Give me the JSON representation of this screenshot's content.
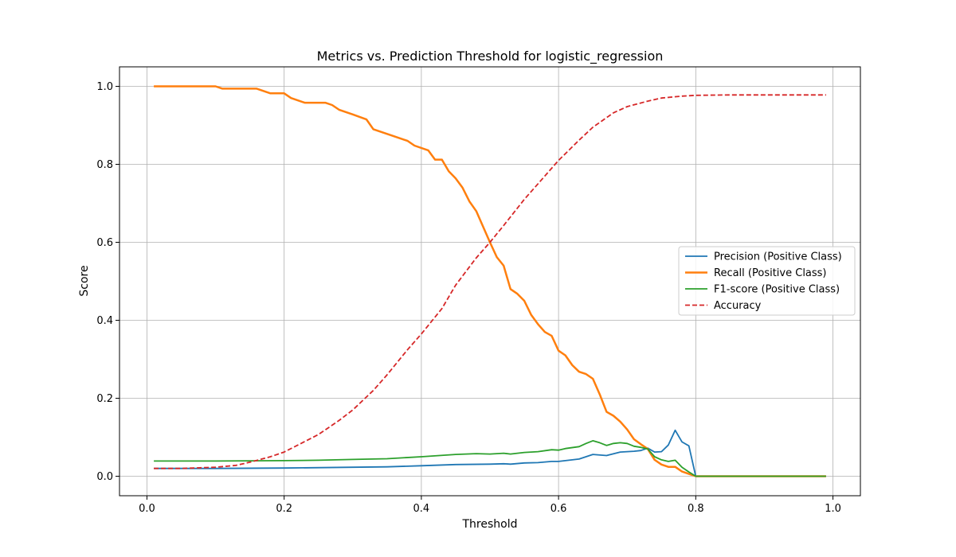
{
  "chart_data": {
    "type": "line",
    "title": "Metrics vs. Prediction Threshold for logistic_regression",
    "xlabel": "Threshold",
    "ylabel": "Score",
    "xlim": [
      -0.04,
      1.04
    ],
    "ylim": [
      -0.05,
      1.05
    ],
    "xticks": [
      0.0,
      0.2,
      0.4,
      0.6,
      0.8,
      1.0
    ],
    "xtick_labels": [
      "0.0",
      "0.2",
      "0.4",
      "0.6",
      "0.8",
      "1.0"
    ],
    "yticks": [
      0.0,
      0.2,
      0.4,
      0.6,
      0.8,
      1.0
    ],
    "ytick_labels": [
      "0.0",
      "0.2",
      "0.4",
      "0.6",
      "0.8",
      "1.0"
    ],
    "grid": true,
    "legend_position": "center-right",
    "series": [
      {
        "name": "Precision (Positive Class)",
        "color": "#1f77b4",
        "style": "solid",
        "points": [
          [
            0.01,
            0.02
          ],
          [
            0.1,
            0.02
          ],
          [
            0.2,
            0.021
          ],
          [
            0.3,
            0.023
          ],
          [
            0.35,
            0.024
          ],
          [
            0.4,
            0.027
          ],
          [
            0.45,
            0.03
          ],
          [
            0.5,
            0.031
          ],
          [
            0.52,
            0.032
          ],
          [
            0.53,
            0.031
          ],
          [
            0.55,
            0.034
          ],
          [
            0.57,
            0.035
          ],
          [
            0.59,
            0.038
          ],
          [
            0.6,
            0.038
          ],
          [
            0.61,
            0.04
          ],
          [
            0.63,
            0.044
          ],
          [
            0.65,
            0.056
          ],
          [
            0.67,
            0.053
          ],
          [
            0.69,
            0.062
          ],
          [
            0.71,
            0.064
          ],
          [
            0.72,
            0.066
          ],
          [
            0.73,
            0.072
          ],
          [
            0.74,
            0.062
          ],
          [
            0.75,
            0.063
          ],
          [
            0.76,
            0.08
          ],
          [
            0.77,
            0.118
          ],
          [
            0.78,
            0.088
          ],
          [
            0.79,
            0.078
          ],
          [
            0.8,
            0.0
          ],
          [
            0.99,
            0.0
          ]
        ]
      },
      {
        "name": "Recall (Positive Class)",
        "color": "#ff7f0e",
        "style": "solid",
        "points": [
          [
            0.01,
            1.0
          ],
          [
            0.1,
            1.0
          ],
          [
            0.11,
            0.994
          ],
          [
            0.16,
            0.994
          ],
          [
            0.18,
            0.982
          ],
          [
            0.2,
            0.982
          ],
          [
            0.21,
            0.97
          ],
          [
            0.23,
            0.958
          ],
          [
            0.26,
            0.958
          ],
          [
            0.27,
            0.952
          ],
          [
            0.28,
            0.94
          ],
          [
            0.3,
            0.928
          ],
          [
            0.32,
            0.915
          ],
          [
            0.33,
            0.89
          ],
          [
            0.36,
            0.872
          ],
          [
            0.38,
            0.86
          ],
          [
            0.39,
            0.848
          ],
          [
            0.41,
            0.836
          ],
          [
            0.42,
            0.812
          ],
          [
            0.43,
            0.812
          ],
          [
            0.44,
            0.782
          ],
          [
            0.45,
            0.764
          ],
          [
            0.46,
            0.74
          ],
          [
            0.47,
            0.705
          ],
          [
            0.48,
            0.68
          ],
          [
            0.49,
            0.64
          ],
          [
            0.5,
            0.6
          ],
          [
            0.51,
            0.562
          ],
          [
            0.52,
            0.54
          ],
          [
            0.53,
            0.48
          ],
          [
            0.54,
            0.468
          ],
          [
            0.55,
            0.45
          ],
          [
            0.56,
            0.414
          ],
          [
            0.57,
            0.39
          ],
          [
            0.58,
            0.37
          ],
          [
            0.59,
            0.36
          ],
          [
            0.6,
            0.322
          ],
          [
            0.61,
            0.31
          ],
          [
            0.62,
            0.285
          ],
          [
            0.63,
            0.268
          ],
          [
            0.64,
            0.262
          ],
          [
            0.65,
            0.25
          ],
          [
            0.66,
            0.21
          ],
          [
            0.67,
            0.165
          ],
          [
            0.68,
            0.155
          ],
          [
            0.69,
            0.14
          ],
          [
            0.7,
            0.12
          ],
          [
            0.71,
            0.095
          ],
          [
            0.72,
            0.082
          ],
          [
            0.73,
            0.07
          ],
          [
            0.74,
            0.042
          ],
          [
            0.75,
            0.03
          ],
          [
            0.76,
            0.024
          ],
          [
            0.77,
            0.024
          ],
          [
            0.78,
            0.012
          ],
          [
            0.79,
            0.006
          ],
          [
            0.8,
            0.0
          ],
          [
            0.99,
            0.0
          ]
        ]
      },
      {
        "name": "F1-score (Positive Class)",
        "color": "#2ca02c",
        "style": "solid",
        "points": [
          [
            0.01,
            0.039
          ],
          [
            0.1,
            0.039
          ],
          [
            0.2,
            0.04
          ],
          [
            0.25,
            0.041
          ],
          [
            0.3,
            0.043
          ],
          [
            0.35,
            0.045
          ],
          [
            0.4,
            0.05
          ],
          [
            0.45,
            0.056
          ],
          [
            0.48,
            0.058
          ],
          [
            0.5,
            0.057
          ],
          [
            0.52,
            0.059
          ],
          [
            0.53,
            0.057
          ],
          [
            0.55,
            0.061
          ],
          [
            0.57,
            0.063
          ],
          [
            0.59,
            0.068
          ],
          [
            0.6,
            0.067
          ],
          [
            0.61,
            0.071
          ],
          [
            0.63,
            0.076
          ],
          [
            0.64,
            0.084
          ],
          [
            0.65,
            0.091
          ],
          [
            0.66,
            0.086
          ],
          [
            0.67,
            0.079
          ],
          [
            0.68,
            0.084
          ],
          [
            0.69,
            0.086
          ],
          [
            0.7,
            0.084
          ],
          [
            0.71,
            0.077
          ],
          [
            0.72,
            0.074
          ],
          [
            0.73,
            0.07
          ],
          [
            0.74,
            0.05
          ],
          [
            0.75,
            0.042
          ],
          [
            0.76,
            0.038
          ],
          [
            0.77,
            0.041
          ],
          [
            0.78,
            0.023
          ],
          [
            0.79,
            0.011
          ],
          [
            0.8,
            0.0
          ],
          [
            0.99,
            0.0
          ]
        ]
      },
      {
        "name": "Accuracy",
        "color": "#d62728",
        "style": "dashed",
        "points": [
          [
            0.01,
            0.02
          ],
          [
            0.05,
            0.02
          ],
          [
            0.1,
            0.023
          ],
          [
            0.13,
            0.028
          ],
          [
            0.15,
            0.036
          ],
          [
            0.18,
            0.05
          ],
          [
            0.2,
            0.062
          ],
          [
            0.22,
            0.08
          ],
          [
            0.25,
            0.107
          ],
          [
            0.28,
            0.143
          ],
          [
            0.3,
            0.17
          ],
          [
            0.33,
            0.22
          ],
          [
            0.35,
            0.26
          ],
          [
            0.38,
            0.325
          ],
          [
            0.4,
            0.365
          ],
          [
            0.43,
            0.43
          ],
          [
            0.45,
            0.49
          ],
          [
            0.48,
            0.56
          ],
          [
            0.5,
            0.6
          ],
          [
            0.52,
            0.643
          ],
          [
            0.55,
            0.71
          ],
          [
            0.58,
            0.77
          ],
          [
            0.6,
            0.81
          ],
          [
            0.63,
            0.862
          ],
          [
            0.65,
            0.895
          ],
          [
            0.68,
            0.932
          ],
          [
            0.7,
            0.948
          ],
          [
            0.73,
            0.962
          ],
          [
            0.75,
            0.97
          ],
          [
            0.78,
            0.975
          ],
          [
            0.8,
            0.977
          ],
          [
            0.85,
            0.978
          ],
          [
            0.99,
            0.978
          ]
        ]
      }
    ]
  }
}
